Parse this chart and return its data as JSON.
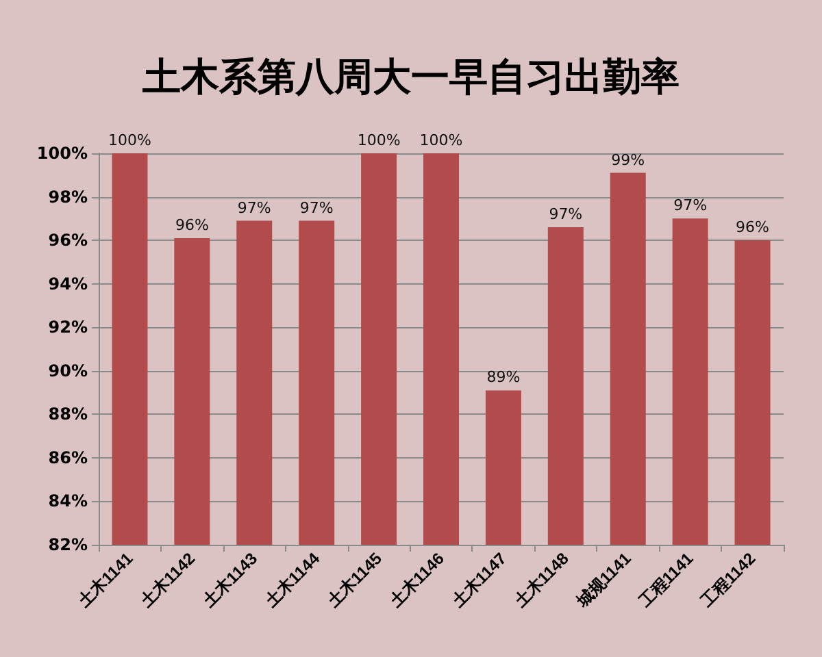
{
  "chart_data": {
    "type": "bar",
    "title": "土木系第八周大一早自习出勤率",
    "categories": [
      "土木1141",
      "土木1142",
      "土木1143",
      "土木1144",
      "土木1145",
      "土木1146",
      "土木1147",
      "土木1148",
      "城规1141",
      "工程1141",
      "工程1142"
    ],
    "values": [
      100,
      96.1,
      96.9,
      96.9,
      100,
      100,
      89.1,
      96.6,
      99.1,
      97.0,
      96.0
    ],
    "value_labels": [
      "100%",
      "96%",
      "97%",
      "97%",
      "100%",
      "100%",
      "89%",
      "97%",
      "99%",
      "97%",
      "96%"
    ],
    "color": "#b24b4b",
    "ylim": [
      82,
      100
    ],
    "yticks": [
      {
        "value": 82,
        "label": "82%"
      },
      {
        "value": 84,
        "label": "84%"
      },
      {
        "value": 86,
        "label": "86%"
      },
      {
        "value": 88,
        "label": "88%"
      },
      {
        "value": 90,
        "label": "90%"
      },
      {
        "value": 92,
        "label": "92%"
      },
      {
        "value": 94,
        "label": "94%"
      },
      {
        "value": 96,
        "label": "96%"
      },
      {
        "value": 98,
        "label": "98%"
      },
      {
        "value": 100,
        "label": "100%"
      }
    ],
    "grid": "y"
  }
}
